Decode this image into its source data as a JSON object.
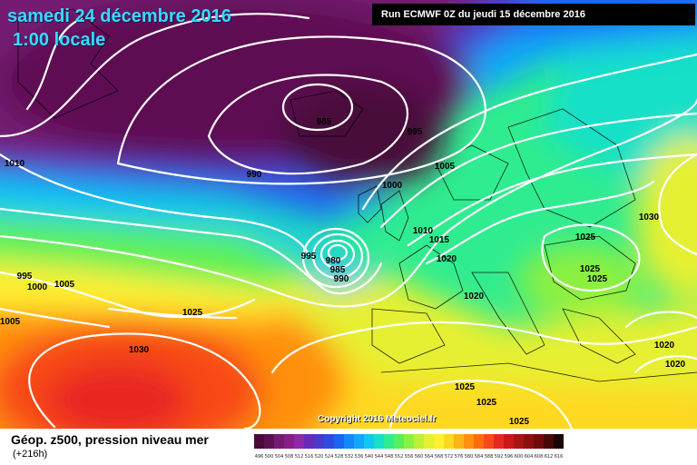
{
  "title": {
    "date": "samedi 24 décembre 2016",
    "time": "1:00 locale"
  },
  "run_info": "Run ECMWF 0Z du jeudi 15 décembre 2016",
  "copyright": "Copyright 2016 Meteociel.fr",
  "legend": {
    "title": "Géop. z500, pression niveau mer",
    "subtitle": "(+216h)",
    "values": [
      "496",
      "500",
      "504",
      "508",
      "512",
      "516",
      "520",
      "524",
      "528",
      "532",
      "536",
      "540",
      "544",
      "548",
      "552",
      "556",
      "560",
      "564",
      "568",
      "572",
      "576",
      "580",
      "584",
      "588",
      "592",
      "596",
      "600",
      "604",
      "608",
      "612",
      "616"
    ],
    "colors": [
      "#4a0a3a",
      "#5e0f52",
      "#741a72",
      "#8a1d8a",
      "#8c2aa8",
      "#6a2ab8",
      "#4a3cc8",
      "#2e4ce0",
      "#1a66f0",
      "#1488f8",
      "#10a8f8",
      "#10c8f0",
      "#18e0c8",
      "#30ec90",
      "#58f058",
      "#8cf040",
      "#bcf038",
      "#e6f030",
      "#fff030",
      "#ffd820",
      "#ffb418",
      "#ff9010",
      "#ff6c10",
      "#f84818",
      "#e82820",
      "#c81818",
      "#a81414",
      "#8c1010",
      "#700c0c",
      "#4a0808",
      "#1a0404"
    ]
  },
  "colors": {
    "contour": "#ffffff",
    "title": "#3ad8ff"
  },
  "isobars": [
    {
      "value": "985",
      "label": "985"
    },
    {
      "value": "995",
      "label": "995"
    },
    {
      "value": "990",
      "label": "990"
    },
    {
      "value": "1010",
      "label": "1010"
    },
    {
      "value": "1000",
      "label": "1000"
    },
    {
      "value": "1005",
      "label": "1005"
    },
    {
      "value": "1010",
      "label": "1010"
    },
    {
      "value": "1015",
      "label": "1015"
    },
    {
      "value": "1020",
      "label": "1020"
    },
    {
      "value": "1030",
      "label": "1030"
    },
    {
      "value": "1025",
      "label": "1025"
    },
    {
      "value": "995",
      "label": "995"
    },
    {
      "value": "980",
      "label": "980"
    },
    {
      "value": "985",
      "label": "985"
    },
    {
      "value": "990",
      "label": "990"
    },
    {
      "value": "995",
      "label": "995"
    },
    {
      "value": "1000",
      "label": "1000"
    },
    {
      "value": "1005",
      "label": "1005"
    },
    {
      "value": "1005",
      "label": "1005"
    },
    {
      "value": "1025",
      "label": "1025"
    },
    {
      "value": "1030",
      "label": "1030"
    },
    {
      "value": "1020",
      "label": "1020"
    },
    {
      "value": "1025",
      "label": "1025"
    },
    {
      "value": "1025",
      "label": "1025"
    },
    {
      "value": "1025",
      "label": "1025"
    },
    {
      "value": "1020",
      "label": "1020"
    },
    {
      "value": "1020",
      "label": "1020"
    },
    {
      "value": "1025",
      "label": "1025"
    },
    {
      "value": "1025",
      "label": "1025"
    }
  ]
}
